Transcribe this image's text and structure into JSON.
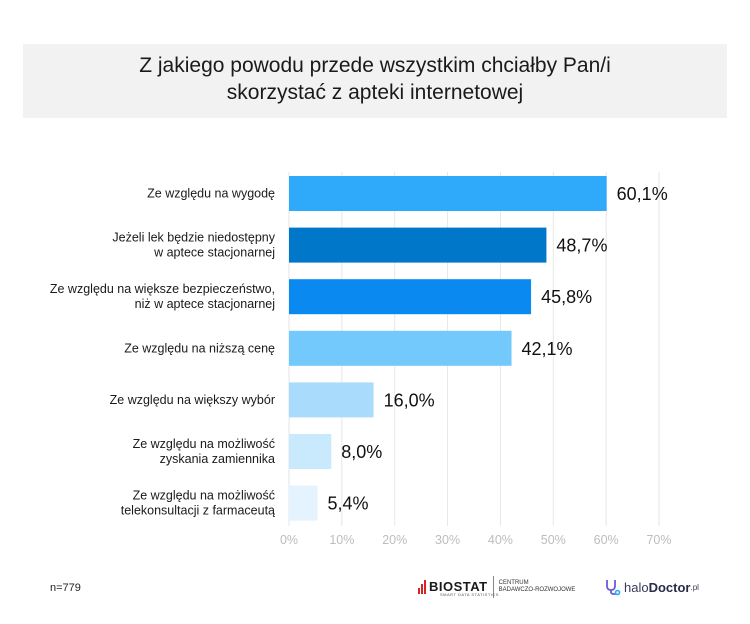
{
  "title": "Z jakiego powodu przede wszystkim chciałby Pan/i\nskorzystać z apteki internetowej",
  "chart_data": {
    "type": "bar",
    "orientation": "horizontal",
    "categories": [
      "Ze względu na wygodę",
      "Jeżeli lek będzie niedostępny\nw aptece stacjonarnej",
      "Ze względu na większe bezpieczeństwo,\nniż w aptece stacjonarnej",
      "Ze względu na niższą cenę",
      "Ze względu na większy wybór",
      "Ze względu na możliwość\nzyskania zamiennika",
      "Ze względu na możliwość\ntelekonsultacji z farmaceutą"
    ],
    "values": [
      60.1,
      48.7,
      45.8,
      42.1,
      16.0,
      8.0,
      5.4
    ],
    "value_labels": [
      "60,1%",
      "48,7%",
      "45,8%",
      "42,1%",
      "16,0%",
      "8,0%",
      "5,4%"
    ],
    "bar_colors": [
      "#2fa9f9",
      "#0077c8",
      "#0a8af0",
      "#73c9fb",
      "#a9dcfc",
      "#c9e9fd",
      "#e4f3fe"
    ],
    "xlim": [
      0,
      70
    ],
    "xticks": [
      0,
      10,
      20,
      30,
      40,
      50,
      60,
      70
    ],
    "xtick_labels": [
      "0%",
      "10%",
      "20%",
      "30%",
      "40%",
      "50%",
      "60%",
      "70%"
    ],
    "grid": true
  },
  "footer": {
    "sample": "n=779",
    "biostat_name": "BIOSTAT",
    "biostat_tagline": "SMART DATA STATISTICS",
    "biostat_caption": "CENTRUM\nBADAWCZO-ROZWOJOWE",
    "halo_prefix": "halo",
    "halo_name": "Doctor",
    "halo_suffix": ".pl"
  },
  "colors": {
    "grid": "#e6e6e6",
    "tick_label": "#bdbdbd",
    "label": "#1a1a1a",
    "brand_red": "#d6232a"
  }
}
